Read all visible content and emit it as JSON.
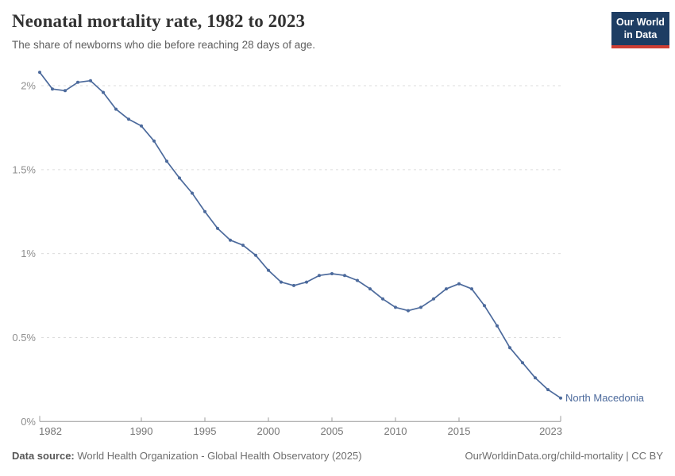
{
  "logo": {
    "line1": "Our World",
    "line2": "in Data",
    "bg_color": "#1d3d63",
    "bar_color": "#cd3e34"
  },
  "chart_data": {
    "type": "line",
    "title": "Neonatal mortality rate, 1982 to 2023",
    "subtitle": "The share of newborns who die before reaching 28 days of age.",
    "entity_label": "North Macedonia",
    "grid": "horizontal dashed",
    "legend_position": "end-of-line label",
    "xlabel": "",
    "ylabel": "",
    "ylim": [
      0,
      2.2
    ],
    "yticks": [
      {
        "value": 0,
        "label": "0%"
      },
      {
        "value": 0.5,
        "label": "0.5%"
      },
      {
        "value": 1,
        "label": "1%"
      },
      {
        "value": 1.5,
        "label": "1.5%"
      },
      {
        "value": 2,
        "label": "2%"
      }
    ],
    "xticks": [
      1982,
      1990,
      1995,
      2000,
      2005,
      2010,
      2015,
      2023
    ],
    "x": [
      1982,
      1983,
      1984,
      1985,
      1986,
      1987,
      1988,
      1989,
      1990,
      1991,
      1992,
      1993,
      1994,
      1995,
      1996,
      1997,
      1998,
      1999,
      2000,
      2001,
      2002,
      2003,
      2004,
      2005,
      2006,
      2007,
      2008,
      2009,
      2010,
      2011,
      2012,
      2013,
      2014,
      2015,
      2016,
      2017,
      2018,
      2019,
      2020,
      2021,
      2022,
      2023
    ],
    "series": [
      {
        "name": "North Macedonia",
        "color": "#4C6A9C",
        "values": [
          2.08,
          1.98,
          1.97,
          2.02,
          2.03,
          1.96,
          1.86,
          1.8,
          1.76,
          1.67,
          1.55,
          1.45,
          1.36,
          1.25,
          1.15,
          1.08,
          1.05,
          0.99,
          0.9,
          0.83,
          0.81,
          0.83,
          0.87,
          0.88,
          0.87,
          0.84,
          0.79,
          0.73,
          0.68,
          0.66,
          0.68,
          0.73,
          0.79,
          0.82,
          0.79,
          0.69,
          0.57,
          0.44,
          0.35,
          0.26,
          0.19,
          0.14
        ]
      }
    ],
    "colors": {
      "gridline": "#dcdcdc",
      "axis": "#9c9c9c",
      "y_tick_label": "#8f8f8f",
      "x_tick_label": "#757575"
    }
  },
  "footer": {
    "source_label": "Data source:",
    "source_text": "World Health Organization - Global Health Observatory (2025)",
    "license": "OurWorldinData.org/child-mortality | CC BY"
  }
}
